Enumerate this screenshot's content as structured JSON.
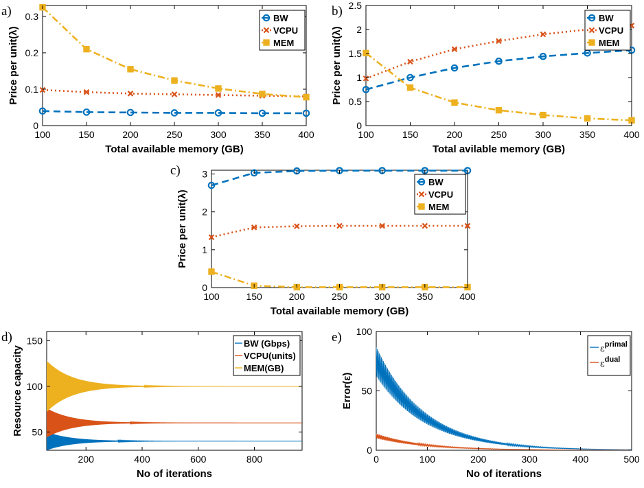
{
  "colors": {
    "BW": "#0072BD",
    "VCPU": "#D95319",
    "MEM": "#EDB120",
    "axis": "#000000",
    "background": "#ffffff"
  },
  "chart_data": [
    {
      "id": "a",
      "panel_label": "a)",
      "type": "line",
      "x": [
        100,
        150,
        200,
        250,
        300,
        350,
        400
      ],
      "xlabel": "Total available memory  (GB)",
      "ylabel": "Price per unit(λ)",
      "xlim": [
        100,
        400
      ],
      "ylim": [
        0,
        0.33
      ],
      "xticks": [
        "100",
        "150",
        "200",
        "250",
        "300",
        "350",
        "400"
      ],
      "yticks": [
        {
          "v": 0,
          "t": "0"
        },
        {
          "v": 0.1,
          "t": "0.1"
        },
        {
          "v": 0.2,
          "t": "0.2"
        },
        {
          "v": 0.3,
          "t": "0.3"
        }
      ],
      "legend_position": "top-right",
      "series": [
        {
          "name": "BW",
          "style": "dash",
          "marker": "circle",
          "values": [
            0.04,
            0.037,
            0.036,
            0.035,
            0.035,
            0.034,
            0.034
          ]
        },
        {
          "name": "VCPU",
          "style": "dot",
          "marker": "x",
          "values": [
            0.098,
            0.092,
            0.088,
            0.086,
            0.084,
            0.082,
            0.08
          ]
        },
        {
          "name": "MEM",
          "style": "dashdot",
          "marker": "square",
          "values": [
            0.325,
            0.21,
            0.155,
            0.124,
            0.102,
            0.087,
            0.078
          ]
        }
      ]
    },
    {
      "id": "b",
      "panel_label": "b)",
      "type": "line",
      "x": [
        100,
        150,
        200,
        250,
        300,
        350,
        400
      ],
      "xlabel": "Total avilable memory (GB)",
      "ylabel": "Price per unit(λ)",
      "xlim": [
        100,
        400
      ],
      "ylim": [
        0,
        2.5
      ],
      "xticks": [
        "100",
        "150",
        "200",
        "250",
        "300",
        "350",
        "400"
      ],
      "yticks": [
        {
          "v": 0,
          "t": "0"
        },
        {
          "v": 0.5,
          "t": "0.5"
        },
        {
          "v": 1,
          "t": "1"
        },
        {
          "v": 1.5,
          "t": "1.5"
        },
        {
          "v": 2,
          "t": "2"
        },
        {
          "v": 2.5,
          "t": "2.5"
        }
      ],
      "legend_position": "top-right",
      "series": [
        {
          "name": "BW",
          "style": "dash",
          "marker": "circle",
          "values": [
            0.75,
            1.0,
            1.2,
            1.34,
            1.44,
            1.51,
            1.57
          ]
        },
        {
          "name": "VCPU",
          "style": "dot",
          "marker": "x",
          "values": [
            0.98,
            1.33,
            1.59,
            1.76,
            1.9,
            2.0,
            2.08
          ]
        },
        {
          "name": "MEM",
          "style": "dashdot",
          "marker": "square",
          "values": [
            1.51,
            0.79,
            0.48,
            0.32,
            0.22,
            0.15,
            0.11
          ]
        }
      ]
    },
    {
      "id": "c",
      "panel_label": "c)",
      "type": "line",
      "x": [
        100,
        150,
        200,
        250,
        300,
        350,
        400
      ],
      "xlabel": "Total available memory (GB)",
      "ylabel": "Price per unit(λ)",
      "xlim": [
        100,
        400
      ],
      "ylim": [
        0,
        3.1
      ],
      "xticks": [
        "100",
        "150",
        "200",
        "250",
        "300",
        "350",
        "400"
      ],
      "yticks": [
        {
          "v": 0,
          "t": "0"
        },
        {
          "v": 1,
          "t": "1"
        },
        {
          "v": 2,
          "t": "2"
        },
        {
          "v": 3,
          "t": "3"
        }
      ],
      "legend_position": "top-right",
      "series": [
        {
          "name": "BW",
          "style": "dash",
          "marker": "circle",
          "values": [
            2.7,
            3.03,
            3.08,
            3.09,
            3.09,
            3.09,
            3.09
          ]
        },
        {
          "name": "VCPU",
          "style": "dot",
          "marker": "x",
          "values": [
            1.33,
            1.59,
            1.62,
            1.63,
            1.63,
            1.63,
            1.63
          ]
        },
        {
          "name": "MEM",
          "style": "dashdot",
          "marker": "square",
          "values": [
            0.42,
            0.05,
            0.01,
            0.01,
            0.01,
            0.01,
            0.01
          ]
        }
      ]
    },
    {
      "id": "d",
      "panel_label": "d)",
      "type": "line",
      "xlabel": "No of iterations",
      "ylabel": "Resource capacity",
      "xlim": [
        60,
        970
      ],
      "ylim": [
        30,
        160
      ],
      "xticks": [
        {
          "v": 200,
          "t": "200"
        },
        {
          "v": 400,
          "t": "400"
        },
        {
          "v": 600,
          "t": "600"
        },
        {
          "v": 800,
          "t": "800"
        }
      ],
      "yticks": [
        {
          "v": 50,
          "t": "50"
        },
        {
          "v": 100,
          "t": "100"
        },
        {
          "v": 150,
          "t": "150"
        }
      ],
      "legend_position": "top-right",
      "series": [
        {
          "name": "BW (Gbps)",
          "base": 40,
          "initial_amplitude": 10,
          "decay_iterations": 90
        },
        {
          "name": "VCPU(units)",
          "base": 60,
          "initial_amplitude": 16,
          "decay_iterations": 90
        },
        {
          "name": "MEM(GB)",
          "base": 100,
          "initial_amplitude": 28,
          "decay_iterations": 90
        }
      ]
    },
    {
      "id": "e",
      "panel_label": "e)",
      "type": "line",
      "xlabel": "No of iterations",
      "ylabel": "Error(ε)",
      "xlim": [
        0,
        500
      ],
      "ylim": [
        0,
        100
      ],
      "xticks": [
        {
          "v": 0,
          "t": "0"
        },
        {
          "v": 100,
          "t": "100"
        },
        {
          "v": 200,
          "t": "200"
        },
        {
          "v": 300,
          "t": "300"
        },
        {
          "v": 400,
          "t": "400"
        },
        {
          "v": 500,
          "t": "500"
        }
      ],
      "yticks": [
        {
          "v": 0,
          "t": "0"
        },
        {
          "v": 50,
          "t": "50"
        },
        {
          "v": 100,
          "t": "100"
        }
      ],
      "legend_position": "top-right",
      "series": [
        {
          "name": "primal",
          "name_base": "ε",
          "initial_peak": 87,
          "decay_iterations": 95
        },
        {
          "name": "dual",
          "name_base": "ε",
          "initial_peak": 14,
          "decay_iterations": 95
        }
      ]
    }
  ]
}
